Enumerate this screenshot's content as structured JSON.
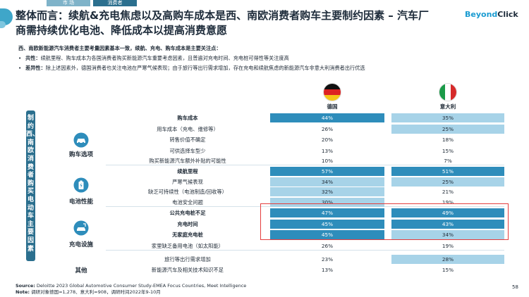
{
  "header": {
    "tab_market": "市 场",
    "tab_consumer": "消费者",
    "title": "整体而言：续航&充电焦虑以及高购车成本是西、南欧消费者购车主要制约因素 – 汽车厂商需持续优化电池、降低成本以提高消费意愿",
    "logo_a": "Beyond",
    "logo_b": "Click"
  },
  "intro": {
    "lead": "西、南欧新能源汽车消费者主要考量因素基本一致，续航、充电、购车成本是主要关注点：",
    "b1_label": "共性：",
    "b1_text": "续航里程、购车成本为各国消费者购买新能源汽车重要考虑因素，且普遍对充电时间、充电桩可得性等关注度高",
    "b2_label": "差异性：",
    "b2_text": "除上述因素外，德国消费者也关注电池在严寒气候表现；由于旅行等出行需求增加，存在充电和续航焦虑的新能源汽车非意大利消费者出行优选"
  },
  "countries": [
    "德国",
    "意大利"
  ],
  "sidebar_label": "制约西、南欧消费者购买电动车主要因素",
  "groups": [
    "购车选项",
    "电池性能",
    "充电设施",
    "其他"
  ],
  "rows": [
    {
      "label": "购车成本",
      "de": "44%",
      "it": "35%"
    },
    {
      "label": "用车成本（充电、维修等）",
      "de": "26%",
      "it": "25%"
    },
    {
      "label": "转售价值不确定",
      "de": "20%",
      "it": "18%"
    },
    {
      "label": "可供选择车型少",
      "de": "13%",
      "it": "15%"
    },
    {
      "label": "购买新能源汽车额外补贴的可能性",
      "de": "10%",
      "it": "7%"
    },
    {
      "label": "续航里程",
      "de": "57%",
      "it": "51%"
    },
    {
      "label": "严寒气候表现",
      "de": "34%",
      "it": "25%"
    },
    {
      "label": "缺乏可持续性（电池制造/回收等）",
      "de": "32%",
      "it": "21%"
    },
    {
      "label": "电池安全问题",
      "de": "30%",
      "it": "19%"
    },
    {
      "label": "公共充电桩不足",
      "de": "47%",
      "it": "49%"
    },
    {
      "label": "充电时间",
      "de": "45%",
      "it": "43%"
    },
    {
      "label": "无家庭充电桩",
      "de": "45%",
      "it": "34%"
    },
    {
      "label": "家里缺乏备用电池（如太阳能）",
      "de": "26%",
      "it": "19%"
    },
    {
      "label": "旅行等出行需求增加",
      "de": "23%",
      "it": "28%"
    },
    {
      "label": "新能源汽车及相关技术知识不足",
      "de": "13%",
      "it": "15%"
    }
  ],
  "colors": {
    "high": "#2e8dbb",
    "mid": "#5aa9d0",
    "low": "#a7d3e8",
    "sidebar": "#2b6f8e"
  },
  "source": {
    "label": "Source:",
    "text": "Deloitte 2023 Global Automotive Consumer Study-EMEA Focus Countries, Meet Intelligence",
    "note_label": "Note:",
    "note_text": "调研对象德国=1,278、意大利=908，调研时间2022年9-10月"
  },
  "page_number": "58"
}
